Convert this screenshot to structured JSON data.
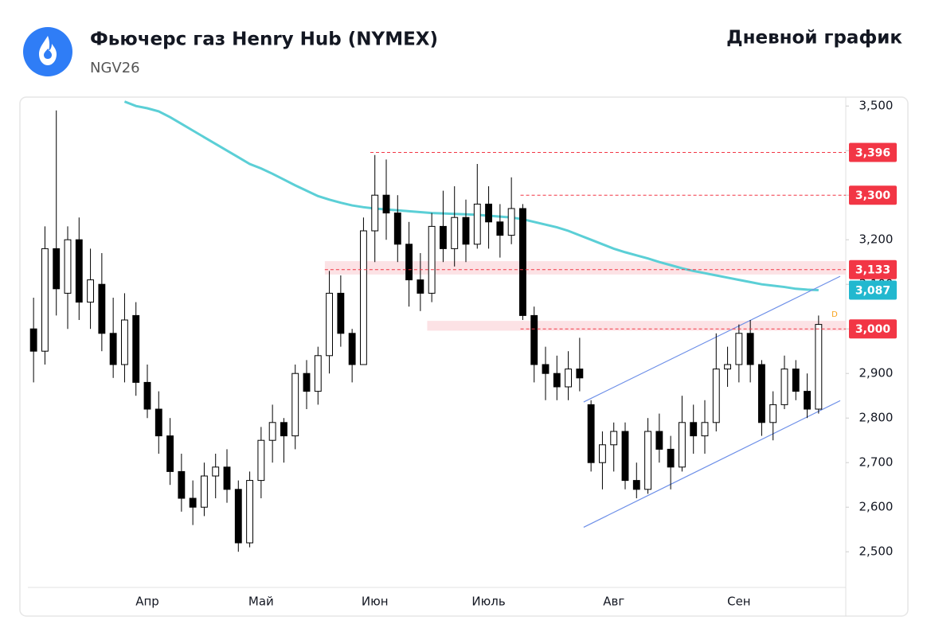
{
  "header": {
    "title": "Фьючерс газ Henry Hub (NYMEX)",
    "symbol": "NGV26",
    "timeframe": "Дневной график"
  },
  "chart_data": {
    "type": "candlestick",
    "categories": [
      null,
      null,
      null,
      null,
      null,
      null,
      null,
      null,
      null,
      null,
      "Апр",
      null,
      null,
      null,
      null,
      null,
      null,
      null,
      null,
      null,
      "Май",
      null,
      null,
      null,
      null,
      null,
      null,
      null,
      null,
      null,
      "Июн",
      null,
      null,
      null,
      null,
      null,
      null,
      null,
      null,
      null,
      "Июль",
      null,
      null,
      null,
      null,
      null,
      null,
      null,
      null,
      null,
      null,
      "Авг",
      null,
      null,
      null,
      null,
      null,
      null,
      null,
      null,
      null,
      null,
      "Сен",
      null,
      null,
      null,
      null,
      null,
      null,
      null
    ],
    "open": [
      3000,
      2950,
      3180,
      3080,
      3200,
      3060,
      3100,
      2990,
      2920,
      3030,
      2880,
      2820,
      2760,
      2680,
      2620,
      2600,
      2670,
      2690,
      2640,
      2520,
      2660,
      2750,
      2790,
      2760,
      2900,
      2860,
      2940,
      3080,
      2990,
      2920,
      3220,
      3300,
      3260,
      3190,
      3110,
      3080,
      3230,
      3180,
      3250,
      3190,
      3280,
      3240,
      3210,
      3270,
      3030,
      2920,
      2900,
      2870,
      2910,
      2830,
      2700,
      2740,
      2770,
      2660,
      2640,
      2770,
      2730,
      2690,
      2790,
      2760,
      2790,
      2910,
      2920,
      2990,
      2920,
      2790,
      2830,
      2910,
      2860,
      2820
    ],
    "high": [
      3070,
      3230,
      3490,
      3230,
      3250,
      3180,
      3170,
      3070,
      3080,
      3060,
      2920,
      2860,
      2800,
      2720,
      2660,
      2700,
      2720,
      2730,
      2660,
      2680,
      2780,
      2830,
      2800,
      2920,
      2930,
      2960,
      3130,
      3120,
      3000,
      3250,
      3390,
      3380,
      3300,
      3240,
      3170,
      3260,
      3310,
      3320,
      3290,
      3370,
      3320,
      3280,
      3340,
      3280,
      3050,
      2960,
      2940,
      2950,
      2980,
      2840,
      2770,
      2790,
      2790,
      2700,
      2800,
      2810,
      2760,
      2850,
      2830,
      2840,
      2990,
      2960,
      3010,
      3020,
      2930,
      2860,
      2940,
      2930,
      2900,
      3030
    ],
    "low": [
      2880,
      2920,
      3030,
      3000,
      3020,
      3000,
      2950,
      2890,
      2880,
      2850,
      2800,
      2720,
      2650,
      2590,
      2560,
      2580,
      2620,
      2610,
      2500,
      2510,
      2620,
      2700,
      2700,
      2730,
      2820,
      2830,
      2900,
      2960,
      2880,
      2920,
      3150,
      3200,
      3150,
      3050,
      3040,
      3060,
      3150,
      3140,
      3150,
      3180,
      3180,
      3160,
      3190,
      3020,
      2880,
      2840,
      2840,
      2840,
      2860,
      2680,
      2640,
      2680,
      2640,
      2620,
      2630,
      2700,
      2640,
      2680,
      2720,
      2720,
      2770,
      2870,
      2880,
      2880,
      2760,
      2750,
      2820,
      2840,
      2800,
      2810
    ],
    "close": [
      2950,
      3180,
      3090,
      3200,
      3060,
      3110,
      2990,
      2920,
      3020,
      2880,
      2820,
      2760,
      2680,
      2620,
      2600,
      2670,
      2690,
      2640,
      2520,
      2660,
      2750,
      2790,
      2760,
      2900,
      2860,
      2940,
      3080,
      2990,
      2920,
      3220,
      3300,
      3260,
      3190,
      3110,
      3080,
      3230,
      3180,
      3250,
      3190,
      3280,
      3240,
      3210,
      3270,
      3030,
      2920,
      2900,
      2870,
      2910,
      2890,
      2700,
      2740,
      2770,
      2660,
      2640,
      2770,
      2730,
      2690,
      2790,
      2760,
      2790,
      2910,
      2920,
      2990,
      2920,
      2790,
      2830,
      2910,
      2860,
      2820,
      3010
    ],
    "up_color": "#ffffff",
    "down_color": "#000000",
    "ma": {
      "color": "#5bcfd6",
      "values": [
        null,
        null,
        null,
        null,
        null,
        null,
        null,
        null,
        3510,
        3500,
        3495,
        3488,
        3475,
        3460,
        3445,
        3430,
        3415,
        3400,
        3385,
        3370,
        3360,
        3348,
        3335,
        3322,
        3310,
        3298,
        3290,
        3283,
        3277,
        3273,
        3270,
        3268,
        3266,
        3264,
        3262,
        3260,
        3259,
        3258,
        3257,
        3256,
        3254,
        3252,
        3250,
        3246,
        3240,
        3234,
        3228,
        3220,
        3210,
        3200,
        3190,
        3180,
        3172,
        3165,
        3158,
        3150,
        3143,
        3136,
        3130,
        3125,
        3120,
        3115,
        3110,
        3105,
        3100,
        3097,
        3094,
        3090,
        3088,
        3087
      ]
    },
    "levels": [
      {
        "value": 3396,
        "label": "3,396",
        "from": 30.1,
        "color": "#f23645"
      },
      {
        "value": 3300,
        "label": "3,300",
        "from": 43.3,
        "color": "#f23645"
      },
      {
        "value": 3133,
        "label": "3,133",
        "from": 26.1,
        "color": "#f23645"
      },
      {
        "value": 3087,
        "label": "3,087",
        "from": 69,
        "color": "#22b8cf"
      },
      {
        "value": 3000,
        "label": "3,000",
        "from": 43.3,
        "color": "#f23645"
      }
    ],
    "zones": [
      {
        "from": 26.1,
        "low": 3122,
        "high": 3152
      },
      {
        "from": 35.1,
        "low": 2996,
        "high": 3018
      }
    ],
    "trendlines": [
      {
        "x": [
          48.85,
          71.4
        ],
        "y": [
          2555,
          2839
        ]
      },
      {
        "x": [
          48.85,
          71.4
        ],
        "y": [
          2836,
          3118
        ]
      }
    ],
    "marker_label": "D",
    "ylim": [
      2420,
      3520
    ],
    "yticks": [
      {
        "value": 2500,
        "label": "2,500"
      },
      {
        "value": 2600,
        "label": "2,600"
      },
      {
        "value": 2700,
        "label": "2,700"
      },
      {
        "value": 2800,
        "label": "2,800"
      },
      {
        "value": 2900,
        "label": "2,900"
      },
      {
        "value": 3000,
        "label": "3,000"
      },
      {
        "value": 3100,
        "label": "3,100"
      },
      {
        "value": 3200,
        "label": "3,200"
      },
      {
        "value": 3300,
        "label": "3,300"
      },
      {
        "value": 3400,
        "label": "3,400"
      },
      {
        "value": 3500,
        "label": "3,500"
      }
    ]
  }
}
